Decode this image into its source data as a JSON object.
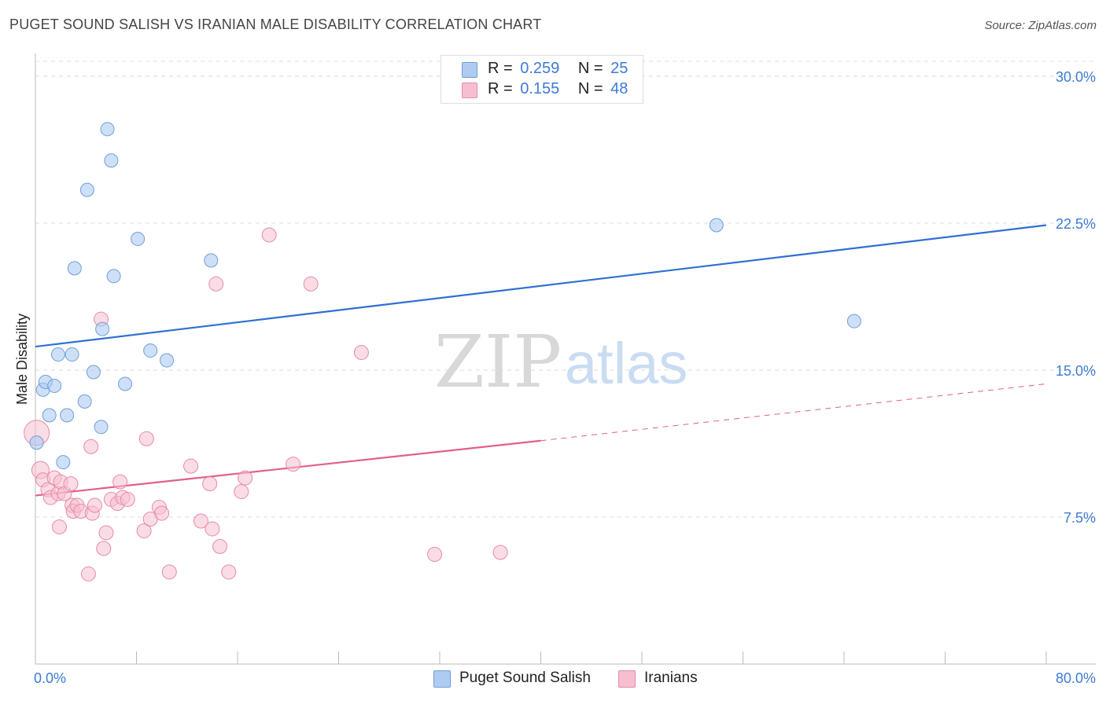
{
  "title": "PUGET SOUND SALISH VS IRANIAN MALE DISABILITY CORRELATION CHART",
  "source": "Source: ZipAtlas.com",
  "watermark": {
    "zip": "ZIP",
    "atlas": "atlas"
  },
  "legend": {
    "rows": [
      {
        "r_label": "R =",
        "r_value": "0.259",
        "n_label": "N =",
        "n_value": "25"
      },
      {
        "r_label": "R =",
        "r_value": "0.155",
        "n_label": "N =",
        "n_value": "48"
      }
    ]
  },
  "bottom_legend": [
    {
      "label": "Puget Sound Salish"
    },
    {
      "label": "Iranians"
    }
  ],
  "colors": {
    "blue_fill": "#aecbf2",
    "blue_stroke": "#6e9fd8",
    "blue_line": "#2f70cf",
    "pink_fill": "#f6bfd0",
    "pink_stroke": "#e88aa8",
    "pink_line": "#e0608c",
    "accent_text": "#3d7bd4",
    "grid": "#dddddd"
  },
  "chart_data": {
    "type": "scatter",
    "title": "PUGET SOUND SALISH VS IRANIAN MALE DISABILITY CORRELATION CHART",
    "xlabel": "",
    "ylabel": "Male Disability",
    "xlim": [
      0,
      80
    ],
    "ylim": [
      0,
      31.5
    ],
    "x_tick_labels": [
      "0.0%",
      "80.0%"
    ],
    "y_ticks": [
      7.5,
      15.0,
      22.5,
      30.0
    ],
    "y_tick_labels": [
      "7.5%",
      "15.0%",
      "22.5%",
      "30.0%"
    ],
    "series": [
      {
        "name": "Puget Sound Salish",
        "color": "#aecbf2",
        "points": [
          [
            0.1,
            11.3
          ],
          [
            0.6,
            14.0
          ],
          [
            0.8,
            14.4
          ],
          [
            1.1,
            12.7
          ],
          [
            1.5,
            14.2
          ],
          [
            1.8,
            15.8
          ],
          [
            2.2,
            10.3
          ],
          [
            2.5,
            12.7
          ],
          [
            2.9,
            15.8
          ],
          [
            3.1,
            20.2
          ],
          [
            3.9,
            13.4
          ],
          [
            4.1,
            24.2
          ],
          [
            4.6,
            14.9
          ],
          [
            5.2,
            12.1
          ],
          [
            5.3,
            17.1
          ],
          [
            5.7,
            27.3
          ],
          [
            6.0,
            25.7
          ],
          [
            6.2,
            19.8
          ],
          [
            7.1,
            14.3
          ],
          [
            8.1,
            21.7
          ],
          [
            9.1,
            16.0
          ],
          [
            10.4,
            15.5
          ],
          [
            13.9,
            20.6
          ],
          [
            53.9,
            22.4
          ],
          [
            64.8,
            17.5
          ]
        ],
        "trend": {
          "x": [
            0,
            80
          ],
          "y": [
            16.2,
            22.4
          ],
          "style": "solid"
        }
      },
      {
        "name": "Iranians",
        "color": "#f6bfd0",
        "points": [
          [
            0.1,
            11.8
          ],
          [
            0.4,
            9.9
          ],
          [
            0.6,
            9.4
          ],
          [
            1.0,
            8.9
          ],
          [
            1.2,
            8.5
          ],
          [
            1.5,
            9.5
          ],
          [
            1.8,
            8.7
          ],
          [
            1.9,
            7.0
          ],
          [
            2.0,
            9.3
          ],
          [
            2.3,
            8.7
          ],
          [
            2.8,
            9.2
          ],
          [
            2.9,
            8.1
          ],
          [
            3.0,
            7.8
          ],
          [
            3.3,
            8.1
          ],
          [
            3.6,
            7.8
          ],
          [
            4.2,
            4.6
          ],
          [
            4.4,
            11.1
          ],
          [
            4.5,
            7.7
          ],
          [
            4.7,
            8.1
          ],
          [
            5.2,
            17.6
          ],
          [
            5.4,
            5.9
          ],
          [
            5.6,
            6.7
          ],
          [
            6.0,
            8.4
          ],
          [
            6.5,
            8.2
          ],
          [
            6.7,
            9.3
          ],
          [
            6.9,
            8.5
          ],
          [
            7.3,
            8.4
          ],
          [
            8.6,
            6.8
          ],
          [
            8.8,
            11.5
          ],
          [
            9.1,
            7.4
          ],
          [
            9.8,
            8.0
          ],
          [
            10.0,
            7.7
          ],
          [
            10.6,
            4.7
          ],
          [
            12.3,
            10.1
          ],
          [
            13.1,
            7.3
          ],
          [
            13.8,
            9.2
          ],
          [
            14.0,
            6.9
          ],
          [
            14.3,
            19.4
          ],
          [
            14.6,
            6.0
          ],
          [
            15.3,
            4.7
          ],
          [
            16.3,
            8.8
          ],
          [
            16.6,
            9.5
          ],
          [
            18.5,
            21.9
          ],
          [
            20.4,
            10.2
          ],
          [
            21.8,
            19.4
          ],
          [
            25.8,
            15.9
          ],
          [
            31.6,
            5.6
          ],
          [
            36.8,
            5.7
          ]
        ],
        "trend": {
          "x": [
            0,
            40
          ],
          "y": [
            8.6,
            11.4
          ],
          "style": "solid"
        },
        "trend_extension": {
          "x": [
            40,
            80
          ],
          "y": [
            11.4,
            14.3
          ],
          "style": "dashed"
        }
      }
    ]
  }
}
